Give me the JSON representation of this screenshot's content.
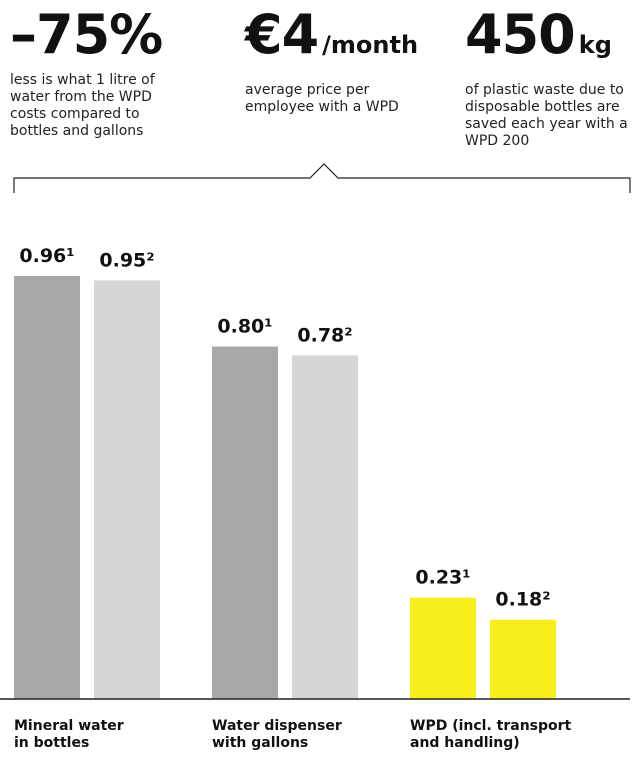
{
  "stats": [
    {
      "value": "–75%",
      "unit": "",
      "description": "less is what 1 litre of water from the WPD costs compared to bottles and gallons"
    },
    {
      "value": "€4",
      "unit": "/month",
      "description": "average price per employee with a WPD"
    },
    {
      "value": "450",
      "unit": "kg",
      "description": "of plastic waste due to disposable bottles are saved each year with a WPD 200"
    }
  ],
  "chart_data": {
    "type": "bar",
    "categories": [
      "Mineral water in bottles",
      "Water dispenser with gallons",
      "WPD (incl. transport and handling)"
    ],
    "category_lines": [
      [
        "Mineral water",
        "in bottles"
      ],
      [
        "Water dispenser",
        "with gallons"
      ],
      [
        "WPD (incl. transport",
        "and handling)"
      ]
    ],
    "series": [
      {
        "values": [
          0.96,
          0.8,
          0.23
        ],
        "labels": [
          "0.96¹",
          "0.80¹",
          "0.23¹"
        ]
      },
      {
        "values": [
          0.95,
          0.78,
          0.18
        ],
        "labels": [
          "0.95²",
          "0.78²",
          "0.18²"
        ]
      }
    ],
    "colors": {
      "series1": [
        "#a8a8a8",
        "#a8a8a8",
        "#f7ee1e"
      ],
      "series2": [
        "#d6d6d6",
        "#d6d6d6",
        "#f7ee1e"
      ]
    },
    "ylim": [
      0,
      0.96
    ],
    "grid": false,
    "legend": "none"
  }
}
